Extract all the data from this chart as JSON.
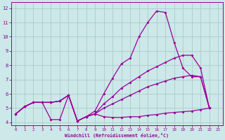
{
  "xlabel": "Windchill (Refroidissement éolien,°C)",
  "background_color": "#cce8e8",
  "grid_color": "#aacccc",
  "line_color": "#990099",
  "xlim": [
    -0.5,
    23.5
  ],
  "ylim": [
    3.8,
    12.4
  ],
  "xticks": [
    0,
    1,
    2,
    3,
    4,
    5,
    6,
    7,
    8,
    9,
    10,
    11,
    12,
    13,
    14,
    15,
    16,
    17,
    18,
    19,
    20,
    21,
    22,
    23
  ],
  "yticks": [
    4,
    5,
    6,
    7,
    8,
    9,
    10,
    11,
    12
  ],
  "series": [
    {
      "name": "line_spike",
      "x": [
        0,
        1,
        2,
        3,
        4,
        5,
        6,
        7,
        8,
        9,
        10,
        11,
        12,
        13,
        14,
        15,
        16,
        17,
        18,
        19,
        20,
        21,
        22
      ],
      "y": [
        4.6,
        5.1,
        5.4,
        5.4,
        4.2,
        4.2,
        5.9,
        4.1,
        4.4,
        4.6,
        4.4,
        4.35,
        4.35,
        4.4,
        4.4,
        4.5,
        4.55,
        4.65,
        4.7,
        4.75,
        4.8,
        4.9,
        5.0
      ]
    },
    {
      "name": "line_lower_rising",
      "x": [
        0,
        1,
        2,
        3,
        4,
        5,
        6,
        7,
        8,
        9,
        10,
        11,
        12,
        13,
        14,
        15,
        16,
        17,
        18,
        19,
        20,
        21,
        22
      ],
      "y": [
        4.6,
        5.1,
        5.4,
        5.4,
        5.4,
        5.5,
        5.9,
        4.1,
        4.4,
        4.6,
        5.0,
        5.3,
        5.6,
        5.9,
        6.2,
        6.5,
        6.7,
        6.9,
        7.1,
        7.2,
        7.3,
        7.2,
        5.0
      ]
    },
    {
      "name": "line_mid_rising",
      "x": [
        0,
        1,
        2,
        3,
        4,
        5,
        6,
        7,
        8,
        9,
        10,
        11,
        12,
        13,
        14,
        15,
        16,
        17,
        18,
        19,
        20,
        21,
        22
      ],
      "y": [
        4.6,
        5.1,
        5.4,
        5.4,
        5.4,
        5.5,
        5.9,
        4.1,
        4.4,
        4.6,
        5.3,
        5.8,
        6.4,
        6.8,
        7.2,
        7.6,
        7.9,
        8.2,
        8.5,
        8.7,
        8.7,
        7.8,
        5.0
      ]
    },
    {
      "name": "line_high_peak",
      "x": [
        0,
        1,
        2,
        3,
        4,
        5,
        6,
        7,
        8,
        9,
        10,
        11,
        12,
        13,
        14,
        15,
        16,
        17,
        18,
        19,
        20,
        21,
        22
      ],
      "y": [
        4.6,
        5.1,
        5.4,
        5.4,
        5.4,
        5.5,
        5.9,
        4.1,
        4.4,
        4.8,
        6.0,
        7.1,
        8.1,
        8.5,
        10.0,
        11.0,
        11.8,
        11.7,
        9.6,
        7.8,
        7.2,
        7.2,
        5.0
      ]
    }
  ]
}
